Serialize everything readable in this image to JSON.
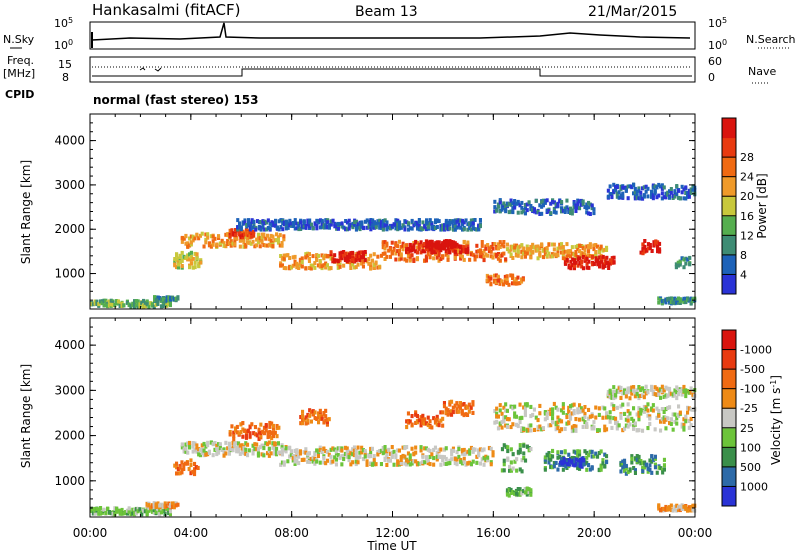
{
  "header": {
    "title": "Hankasalmi (fitACF)",
    "beam": "Beam 13",
    "date": "21/Mar/2015"
  },
  "noise_panel": {
    "left_label": "N.Sky",
    "right_label": "N.Search",
    "left_ticks": [
      "10^5",
      "10^0"
    ],
    "right_ticks": [
      "10^5",
      "10^0"
    ]
  },
  "freq_panel": {
    "left_label_top": "Freq.",
    "left_label_bottom": "[MHz]",
    "right_label": "Nave",
    "left_ticks": [
      "15",
      "8"
    ],
    "right_ticks": [
      "60",
      "0"
    ]
  },
  "cpid": {
    "label": "CPID",
    "value": "normal (fast stereo) 153"
  },
  "x_axis": {
    "label": "Time UT",
    "ticks": [
      "00:00",
      "04:00",
      "08:00",
      "12:00",
      "16:00",
      "20:00",
      "00:00"
    ]
  },
  "chart_data": [
    {
      "type": "heatmap",
      "ylabel": "Slant Range [km]",
      "y_ticks": [
        1000,
        2000,
        3000,
        4000
      ],
      "ylim": [
        200,
        4600
      ],
      "xlim_hours": [
        0,
        24
      ],
      "colorbar_label": "Power [dB]",
      "colorbar_ticks": [
        "4",
        "8",
        "12",
        "16",
        "20",
        "24",
        "28"
      ],
      "colors": [
        "#2a33d6",
        "#1d62b8",
        "#3e8c74",
        "#55ae4f",
        "#c8c83c",
        "#ef9a2a",
        "#f06a12",
        "#e83a10",
        "#d9140e"
      ],
      "blobs": [
        {
          "t0": 0.0,
          "t1": 3.2,
          "r": 320,
          "dr": 70,
          "v": 3
        },
        {
          "t0": 2.5,
          "t1": 3.5,
          "r": 420,
          "dr": 50,
          "v": 2
        },
        {
          "t0": 3.3,
          "t1": 4.4,
          "r": 1300,
          "dr": 170,
          "v": 4
        },
        {
          "t0": 3.6,
          "t1": 7.7,
          "r": 1750,
          "dr": 150,
          "v": 5
        },
        {
          "t0": 5.5,
          "t1": 6.5,
          "r": 1900,
          "dr": 90,
          "v": 7
        },
        {
          "t0": 7.5,
          "t1": 11.5,
          "r": 1280,
          "dr": 170,
          "v": 5
        },
        {
          "t0": 9.5,
          "t1": 11.0,
          "r": 1380,
          "dr": 110,
          "v": 8
        },
        {
          "t0": 11.5,
          "t1": 16.5,
          "r": 1500,
          "dr": 220,
          "v": 6
        },
        {
          "t0": 12.5,
          "t1": 15.0,
          "r": 1600,
          "dr": 130,
          "v": 8
        },
        {
          "t0": 13.3,
          "t1": 14.5,
          "r": 1650,
          "dr": 90,
          "v": 9
        },
        {
          "t0": 15.7,
          "t1": 17.2,
          "r": 850,
          "dr": 110,
          "v": 6
        },
        {
          "t0": 16.5,
          "t1": 20.5,
          "r": 1500,
          "dr": 170,
          "v": 5
        },
        {
          "t0": 18.8,
          "t1": 20.8,
          "r": 1250,
          "dr": 130,
          "v": 8
        },
        {
          "t0": 20.5,
          "t1": 24.0,
          "r": 2850,
          "dr": 160,
          "v": 1
        },
        {
          "t0": 21.8,
          "t1": 22.6,
          "r": 1600,
          "dr": 140,
          "v": 8
        },
        {
          "t0": 23.2,
          "t1": 23.8,
          "r": 1250,
          "dr": 110,
          "v": 2
        },
        {
          "t0": 22.5,
          "t1": 24.0,
          "r": 380,
          "dr": 60,
          "v": 2
        },
        {
          "t0": 5.8,
          "t1": 15.5,
          "r": 2100,
          "dr": 110,
          "v": 1
        },
        {
          "t0": 16.0,
          "t1": 20.0,
          "r": 2500,
          "dr": 160,
          "v": 1
        }
      ]
    },
    {
      "type": "heatmap",
      "ylabel": "Slant Range [km]",
      "y_ticks": [
        1000,
        2000,
        3000,
        4000
      ],
      "ylim": [
        200,
        4600
      ],
      "xlim_hours": [
        0,
        24
      ],
      "colorbar_label": "Velocity [m s-1]",
      "colorbar_ticks": [
        "1000",
        "500",
        "100",
        "25",
        "-25",
        "-100",
        "-500",
        "-1000"
      ],
      "colors": [
        "#2a33d6",
        "#2d6aa8",
        "#3a8f4a",
        "#6cc43a",
        "#c8c8c4",
        "#ee8a16",
        "#f06a12",
        "#e83a10",
        "#d9140e"
      ],
      "blobs": [
        {
          "t0": 0.0,
          "t1": 3.2,
          "r": 330,
          "dr": 70,
          "v": 3
        },
        {
          "t0": 2.2,
          "t1": 3.5,
          "r": 460,
          "dr": 50,
          "v": 5
        },
        {
          "t0": 3.3,
          "t1": 4.3,
          "r": 1300,
          "dr": 170,
          "v": 6
        },
        {
          "t0": 3.6,
          "t1": 7.7,
          "r": 1700,
          "dr": 150,
          "v": 4
        },
        {
          "t0": 7.5,
          "t1": 16.0,
          "r": 1550,
          "dr": 200,
          "v": 4
        },
        {
          "t0": 16.0,
          "t1": 24.0,
          "r": 2400,
          "dr": 300,
          "v": 4
        },
        {
          "t0": 20.5,
          "t1": 24.0,
          "r": 2950,
          "dr": 130,
          "v": 4
        },
        {
          "t0": 5.5,
          "t1": 7.5,
          "r": 2100,
          "dr": 180,
          "v": 6
        },
        {
          "t0": 8.3,
          "t1": 9.5,
          "r": 2400,
          "dr": 160,
          "v": 6
        },
        {
          "t0": 12.5,
          "t1": 14.0,
          "r": 2350,
          "dr": 170,
          "v": 6
        },
        {
          "t0": 14.0,
          "t1": 15.2,
          "r": 2600,
          "dr": 150,
          "v": 6
        },
        {
          "t0": 16.3,
          "t1": 17.5,
          "r": 1500,
          "dr": 300,
          "v": 3
        },
        {
          "t0": 16.5,
          "t1": 17.5,
          "r": 750,
          "dr": 80,
          "v": 3
        },
        {
          "t0": 18.0,
          "t1": 20.5,
          "r": 1450,
          "dr": 220,
          "v": 2
        },
        {
          "t0": 21.0,
          "t1": 22.8,
          "r": 1350,
          "dr": 200,
          "v": 2
        },
        {
          "t0": 18.6,
          "t1": 19.6,
          "r": 1400,
          "dr": 90,
          "v": 0
        },
        {
          "t0": 22.5,
          "t1": 24.0,
          "r": 400,
          "dr": 60,
          "v": 5
        }
      ]
    }
  ]
}
